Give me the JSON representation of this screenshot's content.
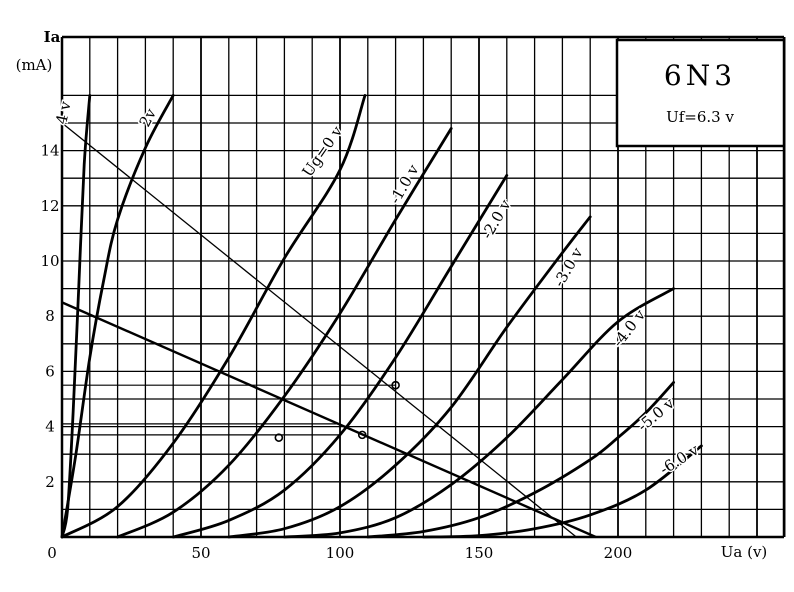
{
  "chart_data": {
    "type": "line",
    "title": "6N3",
    "subtitle": "Uf=6.3 v",
    "ylabel_top": "Ia",
    "ylabel_unit": "(mA)",
    "xlabel": "Ua (v)",
    "xlim": [
      0,
      260
    ],
    "ylim": [
      0,
      17.5
    ],
    "grid": true,
    "x_ticks": [
      "0",
      "50",
      "100",
      "150",
      "200"
    ],
    "y_ticks": [
      "2",
      "4",
      "6",
      "8",
      "10",
      "12",
      "14"
    ],
    "series": [
      {
        "name": "4 v",
        "points": [
          [
            0,
            0
          ],
          [
            2,
            1
          ],
          [
            4,
            4.5
          ],
          [
            6,
            9
          ],
          [
            8,
            13.5
          ],
          [
            10,
            16
          ]
        ]
      },
      {
        "name": "2v",
        "points": [
          [
            0,
            0
          ],
          [
            5,
            3
          ],
          [
            10,
            6.5
          ],
          [
            15,
            9.3
          ],
          [
            20,
            11.5
          ],
          [
            30,
            14.1
          ],
          [
            40,
            16
          ]
        ]
      },
      {
        "name": "Ug=0 v",
        "points": [
          [
            0,
            0
          ],
          [
            20,
            1.1
          ],
          [
            40,
            3.4
          ],
          [
            60,
            6.5
          ],
          [
            80,
            10.1
          ],
          [
            100,
            13.3
          ],
          [
            109,
            16
          ]
        ]
      },
      {
        "name": "-1.0 v",
        "points": [
          [
            20,
            0
          ],
          [
            40,
            0.9
          ],
          [
            60,
            2.6
          ],
          [
            80,
            5.1
          ],
          [
            100,
            8.1
          ],
          [
            120,
            11.5
          ],
          [
            140,
            14.8
          ]
        ]
      },
      {
        "name": "-2.0 v",
        "points": [
          [
            40,
            0
          ],
          [
            60,
            0.6
          ],
          [
            80,
            1.7
          ],
          [
            100,
            3.7
          ],
          [
            120,
            6.5
          ],
          [
            140,
            9.8
          ],
          [
            160,
            13.1
          ]
        ]
      },
      {
        "name": "-3.0 v",
        "points": [
          [
            60,
            0
          ],
          [
            80,
            0.3
          ],
          [
            100,
            1.1
          ],
          [
            120,
            2.6
          ],
          [
            140,
            4.7
          ],
          [
            160,
            7.6
          ],
          [
            180,
            10.3
          ],
          [
            190,
            11.6
          ]
        ]
      },
      {
        "name": "-4.0 v",
        "points": [
          [
            80,
            0
          ],
          [
            100,
            0.15
          ],
          [
            120,
            0.7
          ],
          [
            140,
            1.9
          ],
          [
            160,
            3.6
          ],
          [
            180,
            5.7
          ],
          [
            200,
            7.8
          ],
          [
            220,
            9
          ]
        ]
      },
      {
        "name": "-5.0 v",
        "points": [
          [
            110,
            0
          ],
          [
            130,
            0.2
          ],
          [
            150,
            0.7
          ],
          [
            170,
            1.6
          ],
          [
            190,
            2.8
          ],
          [
            200,
            3.6
          ],
          [
            210,
            4.5
          ],
          [
            220,
            5.6
          ]
        ]
      },
      {
        "name": "-6.0 v",
        "points": [
          [
            130,
            0
          ],
          [
            150,
            0.05
          ],
          [
            170,
            0.3
          ],
          [
            190,
            0.8
          ],
          [
            210,
            1.7
          ],
          [
            230,
            3.3
          ]
        ]
      }
    ],
    "load_lines": [
      {
        "points": [
          [
            0,
            15
          ],
          [
            185,
            0
          ]
        ]
      },
      {
        "points": [
          [
            0,
            8.5
          ],
          [
            192,
            0
          ]
        ]
      }
    ],
    "reference_lines": [
      {
        "y": 5.5,
        "x_end": 120
      },
      {
        "y": 4.1,
        "x_end": 100
      },
      {
        "y": 3.7,
        "x_end": 100
      }
    ],
    "operating_points": [
      [
        120,
        5.5
      ],
      [
        108,
        3.7
      ],
      [
        78,
        3.6
      ]
    ]
  },
  "colors": {
    "ink": "#000000",
    "background": "#ffffff"
  }
}
